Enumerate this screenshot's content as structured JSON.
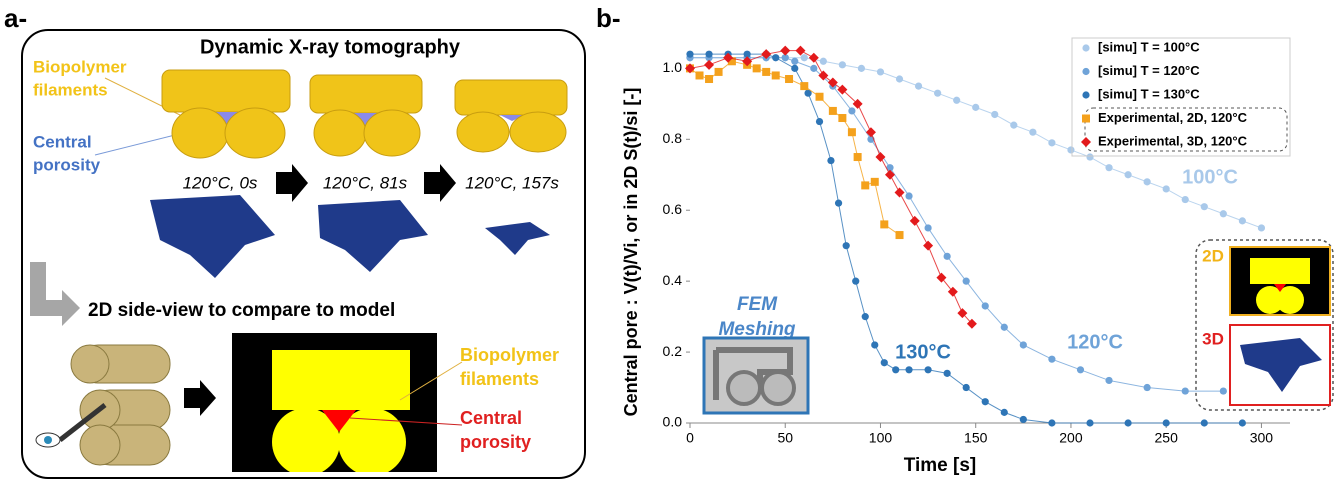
{
  "panel_a": {
    "label": "a-",
    "title": "Dynamic X-ray tomography",
    "filaments_label": [
      "Biopolymer",
      "filaments"
    ],
    "porosity_label": [
      "Central",
      "porosity"
    ],
    "captions": [
      "120°C, 0s",
      "120°C, 81s",
      "120°C, 157s"
    ],
    "side_view": "2D side-view to compare to model",
    "model_filaments_label": [
      "Biopolymer",
      "filaments"
    ],
    "model_porosity_label": [
      "Central",
      "porosity"
    ]
  },
  "chart_data": {
    "type": "line",
    "label": "b-",
    "x_label": "Time [s]",
    "y_label": "Central pore : V(t)/Vi, or in 2D S(t)/si [-]",
    "xlim": [
      0,
      315
    ],
    "ylim": [
      0,
      1.08
    ],
    "xticks": [
      0,
      50,
      100,
      150,
      200,
      250,
      300
    ],
    "yticks": [
      {
        "value": 0,
        "label": "0.0"
      },
      {
        "value": 0.2,
        "label": "0.2"
      },
      {
        "value": 0.4,
        "label": "0.4"
      },
      {
        "value": 0.6,
        "label": "0.6"
      },
      {
        "value": 0.8,
        "label": "0.8"
      },
      {
        "value": 1,
        "label": "1.0"
      }
    ],
    "legend": "top-right",
    "series": [
      {
        "name": "[simu] T = 100°C",
        "color": "#a9c9ea",
        "marker": "circle",
        "x": [
          0,
          10,
          20,
          30,
          40,
          50,
          60,
          70,
          80,
          90,
          100,
          110,
          120,
          130,
          140,
          150,
          160,
          170,
          180,
          190,
          200,
          210,
          220,
          230,
          240,
          250,
          260,
          270,
          280,
          290,
          300
        ],
        "values": [
          1.03,
          1.03,
          1.03,
          1.03,
          1.03,
          1.03,
          1.03,
          1.02,
          1.01,
          1.0,
          0.99,
          0.97,
          0.95,
          0.93,
          0.91,
          0.89,
          0.87,
          0.84,
          0.82,
          0.79,
          0.77,
          0.75,
          0.72,
          0.7,
          0.68,
          0.66,
          0.63,
          0.61,
          0.59,
          0.57,
          0.55
        ]
      },
      {
        "name": "[simu] T = 120°C",
        "color": "#6fa3d8",
        "marker": "circle",
        "x": [
          0,
          10,
          20,
          30,
          40,
          50,
          55,
          65,
          75,
          85,
          95,
          105,
          115,
          125,
          135,
          145,
          155,
          165,
          175,
          190,
          205,
          220,
          240,
          260,
          280
        ],
        "values": [
          1.03,
          1.03,
          1.03,
          1.03,
          1.03,
          1.03,
          1.02,
          1.0,
          0.95,
          0.88,
          0.8,
          0.72,
          0.64,
          0.55,
          0.47,
          0.4,
          0.33,
          0.27,
          0.22,
          0.18,
          0.15,
          0.12,
          0.1,
          0.09,
          0.09
        ]
      },
      {
        "name": "[simu] T = 130°C",
        "color": "#2e75b6",
        "marker": "circle",
        "x": [
          0,
          10,
          20,
          30,
          40,
          45,
          55,
          62,
          68,
          74,
          78,
          82,
          87,
          92,
          97,
          102,
          108,
          115,
          125,
          135,
          145,
          155,
          165,
          175,
          190,
          210,
          230,
          250,
          270,
          290
        ],
        "values": [
          1.04,
          1.04,
          1.04,
          1.04,
          1.04,
          1.03,
          1.0,
          0.93,
          0.85,
          0.74,
          0.62,
          0.5,
          0.4,
          0.3,
          0.22,
          0.17,
          0.15,
          0.15,
          0.15,
          0.14,
          0.1,
          0.06,
          0.03,
          0.01,
          0,
          0,
          0,
          0,
          0,
          0
        ]
      },
      {
        "name": "Experimental, 2D, 120°C",
        "color": "#f4a11c",
        "marker": "square",
        "x": [
          0,
          5,
          10,
          15,
          22,
          30,
          35,
          40,
          45,
          52,
          60,
          68,
          75,
          80,
          85,
          88,
          92,
          97,
          102,
          110
        ],
        "values": [
          1.0,
          0.98,
          0.97,
          0.99,
          1.02,
          1.01,
          1.0,
          0.99,
          0.98,
          0.97,
          0.95,
          0.92,
          0.88,
          0.86,
          0.82,
          0.75,
          0.67,
          0.68,
          0.56,
          0.53
        ]
      },
      {
        "name": "Experimental, 3D, 120°C",
        "color": "#e31a1c",
        "marker": "diamond",
        "x": [
          0,
          10,
          20,
          30,
          40,
          50,
          58,
          65,
          70,
          75,
          80,
          88,
          95,
          100,
          105,
          110,
          118,
          125,
          132,
          138,
          143,
          148
        ],
        "values": [
          1.0,
          1.01,
          1.03,
          1.02,
          1.04,
          1.05,
          1.05,
          1.03,
          0.98,
          0.96,
          0.94,
          0.9,
          0.82,
          0.75,
          0.7,
          0.65,
          0.57,
          0.5,
          0.41,
          0.37,
          0.31,
          0.28
        ]
      }
    ],
    "annotations": [
      "100°C",
      "120°C",
      "130°C"
    ],
    "inset_label": [
      "FEM",
      "Meshing"
    ],
    "inset_2d": "2D",
    "inset_3d": "3D"
  }
}
